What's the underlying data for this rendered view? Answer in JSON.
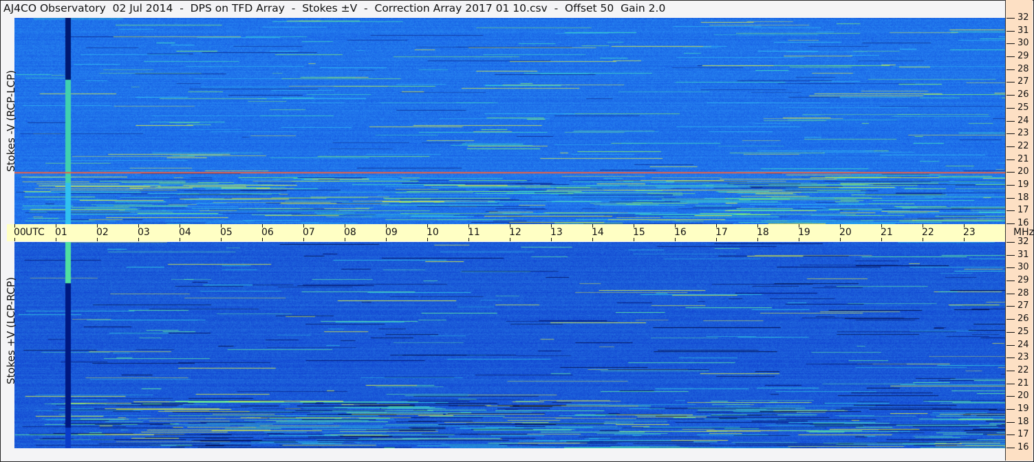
{
  "title": "AJ4CO Observatory  02 Jul 2014  -  DPS on TFD Array  -  Stokes ±V  -  Correction Array 2017 01 10.csv  -  Offset 50  Gain 2.0",
  "chart_data": {
    "type": "heatmap",
    "title": "AJ4CO Observatory  02 Jul 2014  -  DPS on TFD Array  -  Stokes ±V  -  Correction Array 2017 01 10.csv  -  Offset 50  Gain 2.0",
    "x_axis": {
      "ticks": [
        "00",
        "01",
        "02",
        "03",
        "04",
        "05",
        "06",
        "07",
        "08",
        "09",
        "10",
        "11",
        "12",
        "13",
        "14",
        "15",
        "16",
        "17",
        "18",
        "19",
        "20",
        "21",
        "22",
        "23",
        "00"
      ],
      "unit_label": "UTC",
      "range_hours": [
        0,
        24
      ]
    },
    "y_axis": {
      "ticks": [
        "16",
        "17",
        "18",
        "19",
        "20",
        "21",
        "22",
        "23",
        "24",
        "25",
        "26",
        "27",
        "28",
        "29",
        "30",
        "31",
        "32"
      ],
      "unit_label": "MHz",
      "range": [
        16,
        32
      ]
    },
    "panels": [
      {
        "ylabel": "Stokes -V (RCP-LCP)",
        "base_color": "#1f72ea",
        "bright_line_mhz": 20,
        "burst_hour": 1.3
      },
      {
        "ylabel": "Stokes +V (LCP-RCP)",
        "base_color": "#1a5ad8",
        "burst_hour": 1.3
      }
    ],
    "colormap": [
      "#000a50",
      "#0a3cc8",
      "#1f72ea",
      "#28b4f0",
      "#50f0b4",
      "#f0f040",
      "#f05030"
    ],
    "grid": false
  }
}
